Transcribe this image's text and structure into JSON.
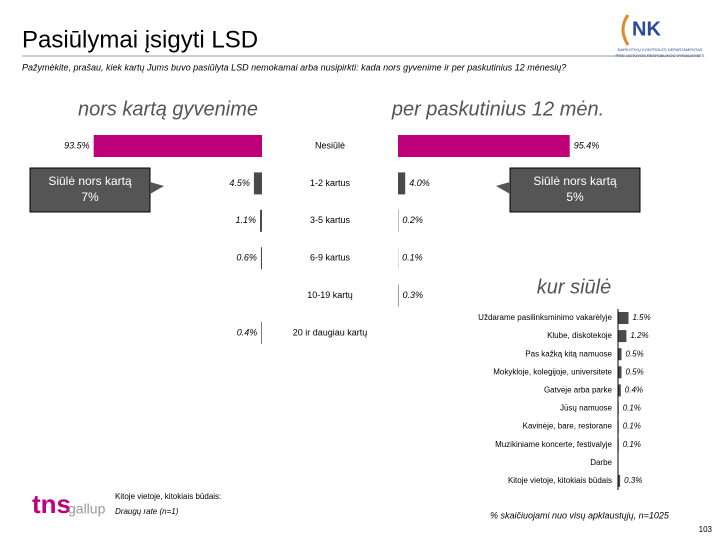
{
  "header": {
    "title": "Pasiūlymai įsigyti LSD",
    "question": "Pažymėkite, prašau, kiek kartų Jums buvo pasiūlyta LSD nemokamai arba nusipirkti: kada nors gyvenime ir per paskutinius 12 mėnesių?",
    "logo_line1": "NARKOTIKŲ KONTROLĖS DEPARTAMENTAS",
    "logo_line2": "PRIE LIETUVOS RESPUBLIKOS VYRIAUSYBĖS"
  },
  "chart_data": [
    {
      "type": "bar",
      "categories": [
        "Nesiūlė",
        "1-2 kartus",
        "3-5 kartus",
        "6-9 kartus",
        "10-19 kartų",
        "20 ir daugiau kartų"
      ],
      "xlim": [
        0,
        100
      ],
      "series": [
        {
          "name": "nors kartą gyvenime",
          "colors": [
            "#c0007a",
            "#4a4a4a",
            "#4a4a4a",
            "#4a4a4a",
            "#4a4a4a",
            "#4a4a4a"
          ],
          "values": [
            93.5,
            4.5,
            1.1,
            0.6,
            null,
            0.4
          ],
          "value_labels": [
            "93.5%",
            "4.5%",
            "1.1%",
            "0.6%",
            null,
            "0.4%"
          ]
        },
        {
          "name": "per paskutinius 12 mėn.",
          "colors": [
            "#c0007a",
            "#4a4a4a",
            "#4a4a4a",
            "#4a4a4a",
            "#4a4a4a",
            "#4a4a4a"
          ],
          "values": [
            95.4,
            4.0,
            0.2,
            0.1,
            0.3,
            null
          ],
          "value_labels": [
            "95.4%",
            "4.0%",
            "0.2%",
            "0.1%",
            "0.3%",
            null
          ]
        }
      ],
      "annotations": [
        [
          "Siūlė nors kartą",
          "7%"
        ],
        [
          "Siūlė nors kartą",
          "5%"
        ]
      ]
    },
    {
      "type": "bar",
      "title": "kur siūlė",
      "categories": [
        "Uždarame pasilinksminimo vakarėlyje",
        "Klube, diskotekoje",
        "Pas kažką kitą namuose",
        "Mokykloje, kolegijoje, universitete",
        "Gatvėje arba parke",
        "Jūsų namuose",
        "Kavinėje, bare, restorane",
        "Muzikiniame koncerte, festivalyje",
        "Darbe",
        "Kitoje vietoje, kitokiais būdais"
      ],
      "values": [
        1.5,
        1.2,
        0.5,
        0.5,
        0.4,
        0.1,
        0.1,
        0.1,
        null,
        0.3
      ],
      "value_labels": [
        "1.5%",
        "1.2%",
        "0.5%",
        "0.5%",
        "0.4%",
        "0.1%",
        "0.1%",
        "0.1%",
        null,
        "0.3%"
      ],
      "xlim": [
        0,
        10
      ],
      "color": "#4a4a4a"
    }
  ],
  "footer": {
    "note_title": "Kitoje vietoje, kitokiais būdais:",
    "note_item": "Draugų rate (n=1)",
    "base": "% skaičiuojami nuo visų apklaustųjų, n=1025",
    "page": "103",
    "logo_tns": "tns",
    "logo_gallup": "gallup"
  }
}
